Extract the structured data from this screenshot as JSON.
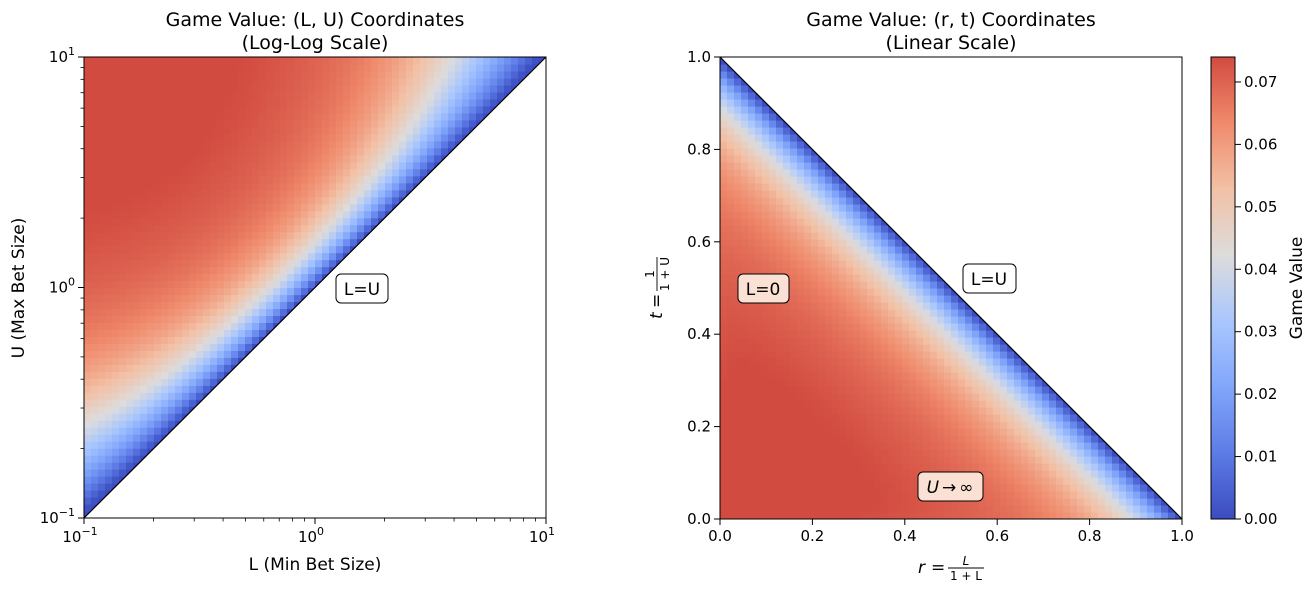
{
  "chart_data": [
    {
      "type": "heatmap",
      "title": "Game Value: (L, U) Coordinates",
      "subtitle": "(Log-Log Scale)",
      "xlabel": "L (Min Bet Size)",
      "ylabel": "U (Max Bet Size)",
      "xscale": "log",
      "yscale": "log",
      "xlim": [
        0.1,
        10
      ],
      "ylim": [
        0.1,
        10
      ],
      "x_ticks": [
        {
          "value": 0.1,
          "base": "10",
          "exp": "−1"
        },
        {
          "value": 1,
          "base": "10",
          "exp": "0"
        },
        {
          "value": 10,
          "base": "10",
          "exp": "1"
        }
      ],
      "y_ticks": [
        {
          "value": 0.1,
          "base": "10",
          "exp": "−1"
        },
        {
          "value": 1,
          "base": "10",
          "exp": "0"
        },
        {
          "value": 10,
          "base": "10",
          "exp": "1"
        }
      ],
      "region": "U > L (above the diagonal)",
      "samples": [
        {
          "L": 0.1,
          "U": 10,
          "value": 0.071
        },
        {
          "L": 0.2,
          "U": 5,
          "value": 0.073
        },
        {
          "L": 0.1,
          "U": 1,
          "value": 0.061
        },
        {
          "L": 0.1,
          "U": 0.2,
          "value": 0.035
        },
        {
          "L": 1,
          "U": 10,
          "value": 0.061
        },
        {
          "L": 3,
          "U": 10,
          "value": 0.045
        },
        {
          "L": 8,
          "U": 10,
          "value": 0.025
        }
      ],
      "annotations": [
        {
          "text": "L=U",
          "x": 1.9,
          "y": 1.0
        }
      ],
      "line": {
        "from": [
          0.1,
          0.1
        ],
        "to": [
          10,
          10
        ],
        "label": "L=U"
      }
    },
    {
      "type": "heatmap",
      "title": "Game Value: (r, t) Coordinates",
      "subtitle": "(Linear Scale)",
      "xlabel_prefix": "r",
      "xlabel_num": "L",
      "xlabel_den": "1 + L",
      "ylabel_prefix": "t",
      "ylabel_num": "1",
      "ylabel_den": "1 + U",
      "xlim": [
        0,
        1
      ],
      "ylim": [
        0,
        1
      ],
      "x_ticks": [
        "0.0",
        "0.2",
        "0.4",
        "0.6",
        "0.8",
        "1.0"
      ],
      "y_ticks": [
        "0.0",
        "0.2",
        "0.4",
        "0.6",
        "0.8",
        "1.0"
      ],
      "region": "r + t < 1 (below the diagonal)",
      "samples": [
        {
          "r": 0.0,
          "t": 0.0,
          "value": 0.072
        },
        {
          "r": 0.1,
          "t": 0.1,
          "value": 0.074
        },
        {
          "r": 0.5,
          "t": 0.0,
          "value": 0.063
        },
        {
          "r": 0.7,
          "t": 0.0,
          "value": 0.05
        },
        {
          "r": 0.9,
          "t": 0.05,
          "value": 0.025
        },
        {
          "r": 0.0,
          "t": 0.5,
          "value": 0.064
        },
        {
          "r": 0.0,
          "t": 0.8,
          "value": 0.04
        },
        {
          "r": 0.0,
          "t": 0.97,
          "value": 0.008
        }
      ],
      "annotations": [
        {
          "text": "L=0",
          "x": 0.095,
          "y": 0.5
        },
        {
          "text": "L=U",
          "x": 0.58,
          "y": 0.52
        },
        {
          "text_prefix": "U",
          "text_arrow": "→",
          "text_suffix": "∞",
          "x": 0.505,
          "y": 0.07
        }
      ],
      "line": {
        "from": [
          0,
          1
        ],
        "to": [
          1,
          0
        ],
        "label": "L=U"
      }
    }
  ],
  "colorbar": {
    "label": "Game Value",
    "range": [
      0,
      0.074
    ],
    "ticks": [
      "0.00",
      "0.01",
      "0.02",
      "0.03",
      "0.04",
      "0.05",
      "0.06",
      "0.07"
    ],
    "colormap": "coolwarm",
    "low_color": "#3b4cc0",
    "mid_color": "#dddcdc",
    "high_color": "#b40426"
  }
}
